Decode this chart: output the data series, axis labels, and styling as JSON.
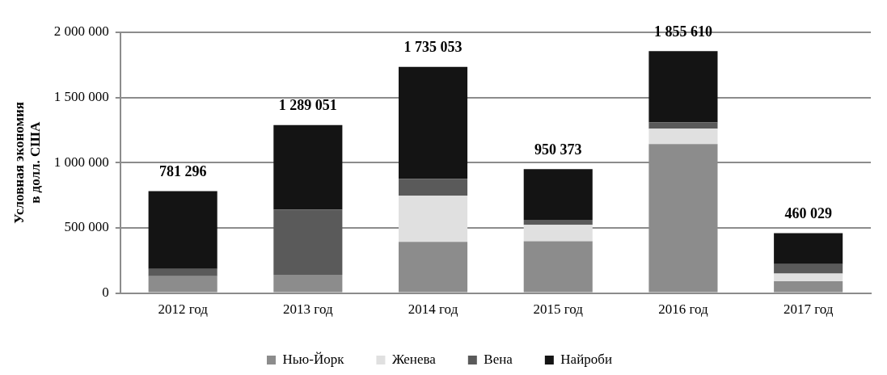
{
  "chart_data": {
    "type": "bar",
    "stacked": true,
    "ylabel": "Условная экономия\nв долл. США",
    "categories": [
      "2012 год",
      "2013 год",
      "2014 год",
      "2015 год",
      "2016 год",
      "2017 год"
    ],
    "series": [
      {
        "name": "Нью-Йорк",
        "color": "#8c8c8c",
        "values": [
          130000,
          140000,
          393000,
          397000,
          1143000,
          90000
        ]
      },
      {
        "name": "Женева",
        "color": "#e0e0e0",
        "values": [
          0,
          0,
          353000,
          126000,
          117000,
          60000
        ]
      },
      {
        "name": "Вена",
        "color": "#5a5a5a",
        "values": [
          55000,
          500000,
          130000,
          39000,
          49000,
          72000
        ]
      },
      {
        "name": "Найроби",
        "color": "#141414",
        "values": [
          596296,
          649051,
          859053,
          388373,
          546610,
          238029
        ]
      }
    ],
    "totals": [
      "781 296",
      "1 289 051",
      "1 735 053",
      "950 373",
      "1 855 610",
      "460 029"
    ],
    "ylim": [
      0,
      2000000
    ],
    "yticks": [
      {
        "value": 0,
        "label": "0"
      },
      {
        "value": 500000,
        "label": "500 000"
      },
      {
        "value": 1000000,
        "label": "1 000 000"
      },
      {
        "value": 1500000,
        "label": "1 500 000"
      },
      {
        "value": 2000000,
        "label": "2 000 000"
      }
    ],
    "grid": "y",
    "legend": "bottom"
  }
}
